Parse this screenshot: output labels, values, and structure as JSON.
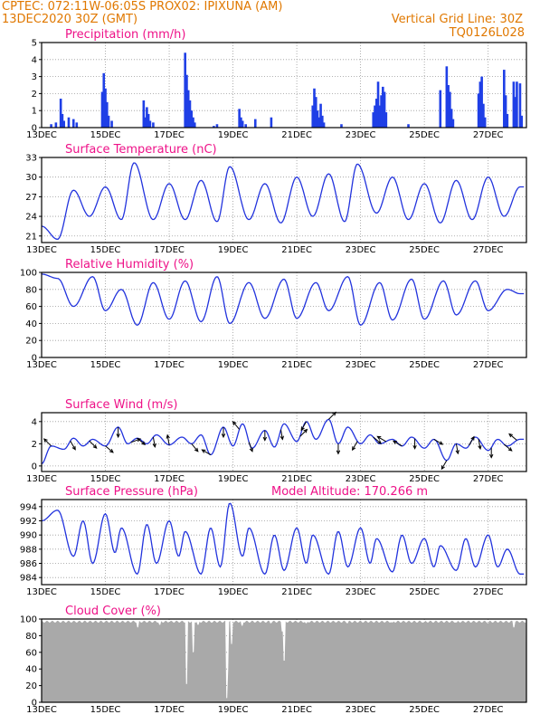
{
  "header": {
    "left_line1": "CPTEC:   072:11W-06:05S   PROX02: IPIXUNA (AM)",
    "left_line2": "13DEC2020 30Z (GMT)",
    "right_line2": "Vertical Grid Line: 30Z",
    "right_line3": "TQ0126L028"
  },
  "colors": {
    "header": "#e07800",
    "title": "#ee1288",
    "line": "#2233dd",
    "bar": "#1f3fe6",
    "cloud": "#a9a9a9"
  },
  "chart_data": [
    {
      "id": "precip",
      "type": "bar",
      "title": "Precipitation (mm/h)",
      "ylim": [
        0,
        5
      ],
      "yticks": [
        "0",
        "1",
        "2",
        "3",
        "4",
        "5"
      ],
      "xticks": [
        "13DEC",
        "15DEC",
        "17DEC",
        "19DEC",
        "21DEC",
        "23DEC",
        "25DEC",
        "27DEC"
      ],
      "xlim_days": [
        13,
        28.2
      ],
      "grid": true,
      "x": [
        13.3,
        13.45,
        13.6,
        13.65,
        13.7,
        13.85,
        14.0,
        14.1,
        14.9,
        14.95,
        15.0,
        15.05,
        15.1,
        15.2,
        16.2,
        16.25,
        16.3,
        16.35,
        16.4,
        16.5,
        17.5,
        17.55,
        17.6,
        17.65,
        17.7,
        17.75,
        17.8,
        18.4,
        18.5,
        19.2,
        19.25,
        19.3,
        19.4,
        19.7,
        20.2,
        21.5,
        21.55,
        21.6,
        21.65,
        21.7,
        21.75,
        21.8,
        21.85,
        22.4,
        23.4,
        23.45,
        23.5,
        23.55,
        23.6,
        23.65,
        23.7,
        23.75,
        23.8,
        24.5,
        25.5,
        25.7,
        25.75,
        25.8,
        25.85,
        25.9,
        26.7,
        26.75,
        26.8,
        26.85,
        26.9,
        27.5,
        27.55,
        27.6,
        27.8,
        27.85,
        27.9,
        28.0,
        28.05
      ],
      "values": [
        0.2,
        0.3,
        1.7,
        0.8,
        0.4,
        0.6,
        0.5,
        0.3,
        2.1,
        3.2,
        2.3,
        1.5,
        0.7,
        0.4,
        1.6,
        0.6,
        1.2,
        0.8,
        0.4,
        0.3,
        4.4,
        3.1,
        2.2,
        1.6,
        1.0,
        0.6,
        0.3,
        0.1,
        0.2,
        1.1,
        0.6,
        0.4,
        0.2,
        0.5,
        0.6,
        1.3,
        2.3,
        1.8,
        1.0,
        0.6,
        1.4,
        0.7,
        0.3,
        0.2,
        0.9,
        1.3,
        1.7,
        2.7,
        1.3,
        1.9,
        2.4,
        2.1,
        0.9,
        0.2,
        2.2,
        3.6,
        2.5,
        2.1,
        1.1,
        0.5,
        2.0,
        2.7,
        3.0,
        1.4,
        0.6,
        3.4,
        1.9,
        0.8,
        2.7,
        1.8,
        2.7,
        2.6,
        0.7
      ]
    },
    {
      "id": "temp",
      "type": "line",
      "title": "Surface Temperature (nC)",
      "ylim": [
        20,
        33
      ],
      "yticks": [
        "21",
        "24",
        "27",
        "30",
        "33"
      ],
      "xticks": [
        "13DEC",
        "15DEC",
        "17DEC",
        "19DEC",
        "21DEC",
        "23DEC",
        "25DEC",
        "27DEC"
      ],
      "grid": true,
      "day_peaks": [
        [
          13,
          22.5
        ],
        [
          13.5,
          20.5
        ],
        [
          14.0,
          28.0
        ],
        [
          14.5,
          24.0
        ],
        [
          15.0,
          28.5
        ],
        [
          15.5,
          23.5
        ],
        [
          15.9,
          32.2
        ],
        [
          16.5,
          23.5
        ],
        [
          17.0,
          29.0
        ],
        [
          17.5,
          23.5
        ],
        [
          18.0,
          29.5
        ],
        [
          18.5,
          23.2
        ],
        [
          18.9,
          31.6
        ],
        [
          19.5,
          23.5
        ],
        [
          20.0,
          29.0
        ],
        [
          20.5,
          23.0
        ],
        [
          21.0,
          30.0
        ],
        [
          21.5,
          24.0
        ],
        [
          22.0,
          30.5
        ],
        [
          22.5,
          23.2
        ],
        [
          22.9,
          32.0
        ],
        [
          23.5,
          24.5
        ],
        [
          24.0,
          30.0
        ],
        [
          24.5,
          23.5
        ],
        [
          25.0,
          29.0
        ],
        [
          25.5,
          23.0
        ],
        [
          26.0,
          29.5
        ],
        [
          26.5,
          23.5
        ],
        [
          27.0,
          30.0
        ],
        [
          27.5,
          24.0
        ],
        [
          28.0,
          28.5
        ]
      ]
    },
    {
      "id": "rh",
      "type": "line",
      "title": "Relative Humidity (%)",
      "ylim": [
        0,
        100
      ],
      "yticks": [
        "0",
        "20",
        "40",
        "60",
        "80",
        "100"
      ],
      "xticks": [
        "13DEC",
        "15DEC",
        "17DEC",
        "19DEC",
        "21DEC",
        "23DEC",
        "25DEC",
        "27DEC"
      ],
      "grid": true,
      "day_peaks": [
        [
          13,
          98
        ],
        [
          13.5,
          93
        ],
        [
          14.0,
          60
        ],
        [
          14.6,
          95
        ],
        [
          15.0,
          55
        ],
        [
          15.5,
          80
        ],
        [
          16.0,
          38
        ],
        [
          16.5,
          88
        ],
        [
          17.0,
          45
        ],
        [
          17.5,
          90
        ],
        [
          18.0,
          42
        ],
        [
          18.5,
          95
        ],
        [
          18.9,
          40
        ],
        [
          19.5,
          88
        ],
        [
          20.0,
          46
        ],
        [
          20.6,
          92
        ],
        [
          21.0,
          46
        ],
        [
          21.6,
          88
        ],
        [
          22.0,
          55
        ],
        [
          22.6,
          95
        ],
        [
          23.0,
          38
        ],
        [
          23.6,
          88
        ],
        [
          24.0,
          44
        ],
        [
          24.6,
          92
        ],
        [
          25.0,
          45
        ],
        [
          25.6,
          90
        ],
        [
          26.0,
          50
        ],
        [
          26.6,
          90
        ],
        [
          27.0,
          55
        ],
        [
          27.6,
          80
        ],
        [
          28.0,
          75
        ]
      ]
    },
    {
      "id": "wind",
      "type": "line",
      "title": "Surface Wind (m/s)",
      "ylim": [
        -0.5,
        4.8
      ],
      "yticks": [
        "0",
        "2",
        "4"
      ],
      "xticks": [
        "13DEC",
        "15DEC",
        "17DEC",
        "19DEC",
        "21DEC",
        "23DEC",
        "25DEC",
        "27DEC"
      ],
      "grid": true,
      "day_peaks": [
        [
          13.0,
          0.2
        ],
        [
          13.3,
          1.8
        ],
        [
          13.7,
          1.5
        ],
        [
          14.0,
          2.5
        ],
        [
          14.3,
          1.8
        ],
        [
          14.6,
          2.4
        ],
        [
          15.0,
          1.8
        ],
        [
          15.4,
          3.5
        ],
        [
          15.7,
          2.0
        ],
        [
          16.0,
          2.5
        ],
        [
          16.3,
          2.0
        ],
        [
          16.6,
          2.8
        ],
        [
          17.0,
          1.9
        ],
        [
          17.4,
          2.6
        ],
        [
          17.7,
          2.0
        ],
        [
          18.0,
          2.8
        ],
        [
          18.3,
          1.0
        ],
        [
          18.7,
          3.5
        ],
        [
          19.0,
          1.8
        ],
        [
          19.3,
          3.8
        ],
        [
          19.6,
          1.6
        ],
        [
          20.0,
          3.2
        ],
        [
          20.3,
          1.7
        ],
        [
          20.6,
          3.8
        ],
        [
          21.0,
          2.2
        ],
        [
          21.3,
          4.0
        ],
        [
          21.6,
          2.4
        ],
        [
          22.0,
          4.2
        ],
        [
          22.3,
          2.0
        ],
        [
          22.6,
          3.5
        ],
        [
          23.0,
          2.0
        ],
        [
          23.3,
          2.8
        ],
        [
          23.6,
          2.0
        ],
        [
          24.0,
          2.4
        ],
        [
          24.3,
          1.8
        ],
        [
          24.6,
          2.6
        ],
        [
          25.0,
          1.6
        ],
        [
          25.3,
          2.4
        ],
        [
          25.7,
          0.5
        ],
        [
          26.0,
          2.0
        ],
        [
          26.3,
          1.6
        ],
        [
          26.6,
          2.6
        ],
        [
          27.0,
          1.4
        ],
        [
          27.3,
          2.4
        ],
        [
          27.6,
          1.8
        ],
        [
          28.0,
          2.4
        ]
      ],
      "arrows": [
        [
          13.3,
          135
        ],
        [
          13.9,
          -60
        ],
        [
          14.5,
          -45
        ],
        [
          15.0,
          -40
        ],
        [
          15.4,
          -90
        ],
        [
          15.8,
          20
        ],
        [
          16.0,
          -40
        ],
        [
          16.5,
          -80
        ],
        [
          17.0,
          100
        ],
        [
          17.7,
          -50
        ],
        [
          18.3,
          150
        ],
        [
          18.7,
          -90
        ],
        [
          19.2,
          130
        ],
        [
          19.5,
          -70
        ],
        [
          20.0,
          -90
        ],
        [
          20.5,
          -80
        ],
        [
          21.1,
          45
        ],
        [
          21.3,
          -120
        ],
        [
          22.0,
          45
        ],
        [
          22.3,
          -90
        ],
        [
          22.9,
          -120
        ],
        [
          23.4,
          -40
        ],
        [
          23.8,
          150
        ],
        [
          24.3,
          150
        ],
        [
          24.7,
          -90
        ],
        [
          25.3,
          -30
        ],
        [
          25.7,
          -120
        ],
        [
          26.0,
          -80
        ],
        [
          26.4,
          60
        ],
        [
          26.7,
          -80
        ],
        [
          27.1,
          -90
        ],
        [
          27.5,
          -40
        ],
        [
          27.9,
          140
        ]
      ]
    },
    {
      "id": "press",
      "type": "line",
      "title": "Surface Pressure (hPa)",
      "annotation": "Model Altitude: 170.266 m",
      "ylim": [
        983,
        995
      ],
      "yticks": [
        "984",
        "986",
        "988",
        "990",
        "992",
        "994"
      ],
      "xticks": [
        "13DEC",
        "15DEC",
        "17DEC",
        "19DEC",
        "21DEC",
        "23DEC",
        "25DEC",
        "27DEC"
      ],
      "grid": true,
      "day_peaks": [
        [
          13.0,
          992.0
        ],
        [
          13.5,
          993.5
        ],
        [
          14.0,
          987.0
        ],
        [
          14.3,
          992.0
        ],
        [
          14.6,
          986.0
        ],
        [
          15.0,
          993.0
        ],
        [
          15.3,
          987.5
        ],
        [
          15.5,
          991.0
        ],
        [
          16.0,
          984.5
        ],
        [
          16.3,
          991.5
        ],
        [
          16.6,
          986.0
        ],
        [
          17.0,
          992.0
        ],
        [
          17.3,
          987.0
        ],
        [
          17.5,
          990.5
        ],
        [
          18.0,
          984.5
        ],
        [
          18.3,
          991.0
        ],
        [
          18.6,
          985.5
        ],
        [
          18.9,
          994.5
        ],
        [
          19.3,
          987.0
        ],
        [
          19.5,
          991.0
        ],
        [
          20.0,
          984.5
        ],
        [
          20.3,
          990.0
        ],
        [
          20.6,
          985.0
        ],
        [
          21.0,
          991.0
        ],
        [
          21.3,
          986.0
        ],
        [
          21.5,
          990.0
        ],
        [
          22.0,
          984.5
        ],
        [
          22.3,
          990.5
        ],
        [
          22.6,
          985.5
        ],
        [
          23.0,
          991.0
        ],
        [
          23.3,
          986.0
        ],
        [
          23.5,
          989.5
        ],
        [
          24.0,
          984.8
        ],
        [
          24.3,
          990.0
        ],
        [
          24.6,
          986.0
        ],
        [
          25.0,
          989.5
        ],
        [
          25.3,
          985.5
        ],
        [
          25.5,
          988.5
        ],
        [
          26.0,
          985.0
        ],
        [
          26.3,
          989.5
        ],
        [
          26.6,
          985.5
        ],
        [
          27.0,
          990.0
        ],
        [
          27.3,
          985.5
        ],
        [
          27.6,
          988.0
        ],
        [
          28.0,
          984.5
        ]
      ]
    },
    {
      "id": "cloud",
      "type": "area",
      "title": "Cloud Cover (%)",
      "ylim": [
        0,
        100
      ],
      "yticks": [
        "0",
        "20",
        "40",
        "60",
        "80",
        "100"
      ],
      "xticks": [
        "13DEC",
        "15DEC",
        "17DEC",
        "19DEC",
        "21DEC",
        "23DEC",
        "25DEC",
        "27DEC"
      ],
      "grid": true,
      "typical_value": 98,
      "dips": [
        [
          16.0,
          90
        ],
        [
          16.7,
          93
        ],
        [
          17.55,
          22
        ],
        [
          17.75,
          60
        ],
        [
          17.9,
          93
        ],
        [
          18.8,
          5
        ],
        [
          18.85,
          40
        ],
        [
          18.95,
          70
        ],
        [
          19.3,
          92
        ],
        [
          20.2,
          95
        ],
        [
          20.55,
          85
        ],
        [
          20.6,
          50
        ],
        [
          21.3,
          95
        ],
        [
          22.6,
          95
        ],
        [
          24.0,
          96
        ],
        [
          25.0,
          96
        ],
        [
          26.0,
          96
        ],
        [
          27.0,
          95
        ],
        [
          27.8,
          90
        ]
      ]
    }
  ]
}
